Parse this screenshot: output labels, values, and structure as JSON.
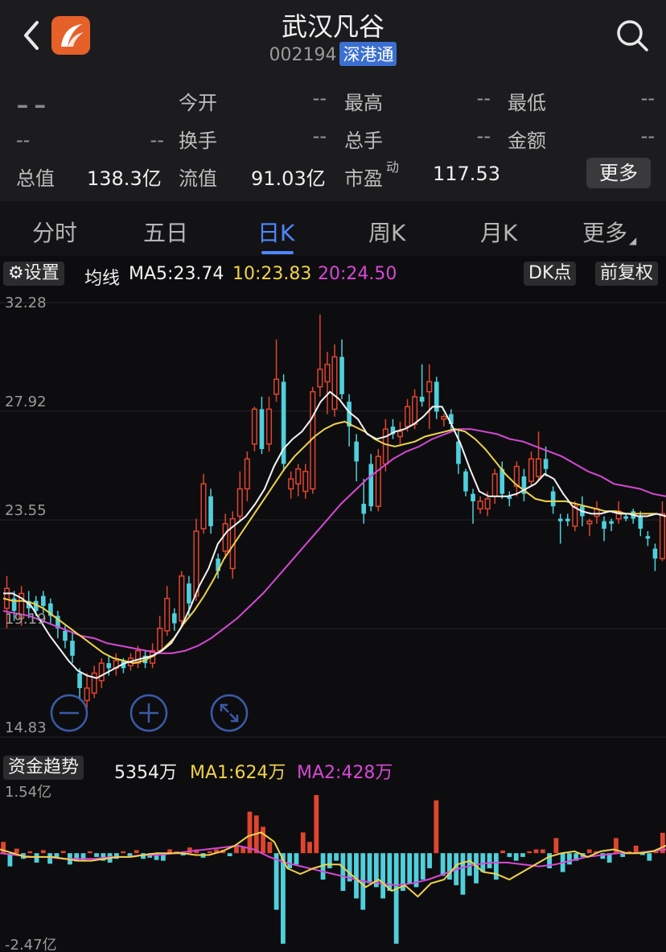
{
  "header": {
    "title": "武汉凡谷",
    "code": "002194",
    "badge": "深港通"
  },
  "quote": {
    "price": "--",
    "change": "--",
    "change_pct": "--",
    "rows": [
      [
        {
          "label": "今开",
          "value": "--"
        },
        {
          "label": "最高",
          "value": "--"
        },
        {
          "label": "最低",
          "value": "--"
        }
      ],
      [
        {
          "label": "换手",
          "value": "--"
        },
        {
          "label": "总手",
          "value": "--"
        },
        {
          "label": "金额",
          "value": "--"
        }
      ]
    ],
    "total_value_label": "总值",
    "total_value": "138.3亿",
    "float_value_label": "流值",
    "float_value": "91.03亿",
    "pe_label": "市盈",
    "pe_sup": "动",
    "pe_value": "117.53",
    "more_label": "更多"
  },
  "tabs": [
    "分时",
    "五日",
    "日K",
    "周K",
    "月K",
    "更多"
  ],
  "active_tab": "日K",
  "ma_row": {
    "settings_label": "设置",
    "ma_title": "均线",
    "ma5": "MA5:23.74",
    "ma10": "10:23.83",
    "ma20": "20:24.50",
    "dk_label": "DK点",
    "adjust_label": "前复权",
    "colors": {
      "ma5": "#f2f2f2",
      "ma10": "#f0d24a",
      "ma20": "#d648d6",
      "up": "#e0452f",
      "down": "#4fd0dc"
    }
  },
  "fund_row": {
    "title": "资金趋势",
    "value": "5354万",
    "ma1": "MA1:624万",
    "ma2": "MA2:428万"
  },
  "chart_data": [
    {
      "type": "candlestick",
      "y_ticks": [
        "32.28",
        "27.92",
        "23.55",
        "19.19",
        "14.83"
      ],
      "ylim": [
        14.83,
        32.28
      ],
      "candles": [
        [
          20.0,
          20.8,
          19.2,
          21.3
        ],
        [
          20.4,
          19.9,
          19.5,
          20.7
        ],
        [
          19.6,
          20.6,
          19.3,
          20.9
        ],
        [
          20.3,
          20.0,
          19.6,
          20.7
        ],
        [
          20.3,
          19.9,
          19.7,
          20.5
        ],
        [
          20.5,
          20.1,
          19.8,
          20.7
        ],
        [
          20.2,
          19.7,
          19.4,
          20.4
        ],
        [
          19.7,
          19.2,
          18.8,
          19.9
        ],
        [
          19.1,
          18.7,
          18.4,
          19.3
        ],
        [
          18.7,
          18.1,
          17.8,
          19.0
        ],
        [
          17.4,
          16.8,
          16.4,
          17.6
        ],
        [
          16.3,
          16.8,
          16.0,
          17.4
        ],
        [
          16.6,
          17.4,
          16.4,
          17.7
        ],
        [
          17.1,
          17.8,
          16.8,
          18.0
        ],
        [
          17.8,
          17.6,
          17.3,
          18.1
        ],
        [
          17.6,
          17.9,
          17.3,
          18.2
        ],
        [
          17.9,
          17.6,
          17.4,
          18.0
        ],
        [
          17.7,
          18.0,
          17.5,
          18.2
        ],
        [
          17.8,
          18.3,
          17.6,
          18.5
        ],
        [
          18.1,
          17.8,
          17.6,
          18.3
        ],
        [
          17.8,
          18.3,
          17.6,
          18.6
        ],
        [
          18.3,
          19.2,
          18.2,
          19.7
        ],
        [
          19.1,
          20.4,
          18.9,
          20.9
        ],
        [
          19.8,
          19.4,
          19.1,
          20.0
        ],
        [
          19.5,
          21.3,
          19.3,
          21.5
        ],
        [
          21.0,
          20.2,
          19.7,
          21.3
        ],
        [
          20.5,
          23.1,
          20.3,
          23.6
        ],
        [
          23.2,
          25.0,
          23.0,
          25.4
        ],
        [
          24.5,
          23.3,
          23.0,
          24.8
        ],
        [
          22.0,
          21.5,
          21.2,
          22.2
        ],
        [
          22.3,
          23.4,
          22.0,
          23.8
        ],
        [
          21.6,
          23.6,
          21.2,
          23.9
        ],
        [
          23.7,
          24.8,
          23.5,
          25.5
        ],
        [
          24.8,
          26.0,
          24.3,
          26.3
        ],
        [
          26.6,
          28.0,
          26.3,
          28.1
        ],
        [
          28.0,
          26.4,
          26.2,
          28.5
        ],
        [
          26.6,
          28.0,
          26.3,
          28.5
        ],
        [
          28.6,
          29.2,
          28.3,
          30.8
        ],
        [
          29.1,
          25.8,
          25.5,
          29.4
        ],
        [
          24.8,
          25.2,
          24.4,
          25.5
        ],
        [
          25.0,
          25.6,
          24.5,
          25.8
        ],
        [
          24.7,
          25.5,
          24.4,
          25.8
        ],
        [
          24.8,
          28.7,
          24.6,
          28.9
        ],
        [
          28.9,
          29.6,
          28.5,
          31.8
        ],
        [
          29.1,
          29.8,
          27.8,
          30.3
        ],
        [
          28.0,
          30.1,
          27.7,
          30.6
        ],
        [
          30.1,
          28.6,
          28.4,
          30.8
        ],
        [
          28.3,
          27.3,
          26.5,
          28.6
        ],
        [
          26.7,
          25.9,
          25.1,
          27.0
        ],
        [
          24.2,
          23.8,
          23.4,
          25.2
        ],
        [
          25.8,
          24.1,
          23.9,
          26.2
        ],
        [
          24.1,
          26.1,
          23.9,
          26.4
        ],
        [
          25.8,
          27.2,
          25.5,
          27.6
        ],
        [
          27.3,
          27.0,
          26.8,
          27.6
        ],
        [
          26.9,
          27.1,
          26.6,
          27.5
        ],
        [
          27.3,
          28.1,
          27.1,
          28.4
        ],
        [
          27.4,
          28.5,
          27.2,
          28.8
        ],
        [
          28.5,
          28.3,
          28.1,
          29.8
        ],
        [
          28.7,
          29.1,
          27.2,
          29.8
        ],
        [
          29.1,
          27.9,
          27.6,
          29.3
        ],
        [
          27.6,
          27.7,
          27.3,
          27.8
        ],
        [
          27.8,
          27.4,
          27.1,
          28.0
        ],
        [
          26.7,
          25.8,
          25.4,
          27.2
        ],
        [
          25.5,
          24.7,
          24.5,
          25.6
        ],
        [
          24.6,
          24.3,
          23.4,
          24.8
        ],
        [
          24.0,
          24.3,
          23.8,
          24.5
        ],
        [
          24.0,
          24.4,
          23.7,
          24.7
        ],
        [
          24.5,
          25.4,
          24.2,
          25.6
        ],
        [
          25.6,
          24.6,
          24.4,
          25.9
        ],
        [
          24.5,
          24.4,
          24.1,
          24.7
        ],
        [
          24.9,
          25.7,
          24.5,
          25.9
        ],
        [
          25.3,
          24.6,
          24.3,
          25.6
        ],
        [
          25.1,
          26.0,
          24.9,
          26.3
        ],
        [
          25.3,
          26.0,
          25.1,
          27.1
        ],
        [
          26.0,
          25.6,
          25.3,
          26.5
        ],
        [
          24.7,
          24.1,
          23.8,
          24.9
        ],
        [
          23.6,
          23.5,
          22.6,
          23.8
        ],
        [
          23.6,
          23.5,
          23.3,
          23.8
        ],
        [
          23.3,
          24.1,
          23.1,
          24.3
        ],
        [
          24.1,
          23.7,
          23.3,
          24.5
        ],
        [
          23.4,
          23.5,
          22.9,
          23.6
        ],
        [
          23.7,
          24.0,
          23.4,
          24.3
        ],
        [
          23.5,
          23.2,
          22.7,
          23.7
        ],
        [
          23.5,
          23.4,
          23.1,
          23.6
        ],
        [
          23.6,
          23.9,
          23.4,
          24.3
        ],
        [
          23.7,
          23.6,
          23.5,
          23.8
        ],
        [
          23.9,
          23.6,
          23.4,
          24.0
        ],
        [
          23.7,
          23.2,
          22.9,
          23.9
        ],
        [
          22.9,
          22.8,
          22.5,
          23.1
        ],
        [
          22.4,
          22.0,
          21.5,
          22.6
        ],
        [
          22.0,
          23.8,
          21.9,
          24.3
        ]
      ],
      "ma5": [
        20.6,
        20.6,
        20.4,
        20.1,
        19.5,
        18.9,
        18.4,
        17.9,
        17.5,
        17.3,
        17.2,
        17.4,
        17.6,
        17.8,
        17.9,
        18.0,
        18.1,
        18.3,
        18.6,
        19.2,
        20.0,
        20.9,
        21.6,
        22.6,
        23.1,
        23.4,
        23.7,
        24.2,
        24.8,
        25.7,
        26.4,
        26.8,
        27.1,
        27.6,
        28.3,
        28.7,
        28.4,
        27.9,
        27.6,
        27.0,
        26.8,
        26.9,
        27.1,
        27.2,
        27.4,
        27.7,
        28.1,
        28.1,
        27.4,
        26.6,
        25.6,
        24.7,
        24.5,
        24.5,
        24.5,
        24.6,
        24.8,
        25.0,
        25.4,
        25.2,
        24.6,
        24.1,
        23.9,
        23.8,
        23.8,
        23.9,
        23.8,
        23.8,
        23.7,
        23.7,
        23.8,
        23.7
      ],
      "ma10": [
        20.4,
        20.3,
        20.3,
        20.2,
        20.0,
        19.7,
        19.4,
        19.1,
        18.8,
        18.5,
        18.2,
        18.0,
        17.9,
        17.8,
        17.9,
        18.1,
        18.4,
        18.8,
        19.4,
        19.9,
        20.5,
        21.2,
        22.0,
        22.6,
        23.2,
        23.8,
        24.4,
        25.0,
        25.6,
        26.1,
        26.5,
        26.9,
        27.2,
        27.4,
        27.5,
        27.3,
        27.1,
        26.8,
        26.6,
        26.5,
        26.6,
        26.7,
        26.9,
        27.0,
        27.1,
        27.2,
        27.1,
        26.8,
        26.4,
        25.9,
        25.4,
        25.0,
        24.7,
        24.4,
        24.3,
        24.3,
        24.3,
        24.2,
        24.1,
        24.0,
        23.9,
        23.9,
        23.8,
        23.8,
        23.8,
        23.8,
        23.7
      ],
      "ma20": [
        19.9,
        19.8,
        19.7,
        19.5,
        19.3,
        19.1,
        18.9,
        18.8,
        18.6,
        18.5,
        18.4,
        18.3,
        18.2,
        18.2,
        18.3,
        18.5,
        18.8,
        19.2,
        19.6,
        20.1,
        20.6,
        21.2,
        21.8,
        22.4,
        23.0,
        23.6,
        24.2,
        24.7,
        25.2,
        25.6,
        26.0,
        26.3,
        26.5,
        26.8,
        27.0,
        27.2,
        27.2,
        27.1,
        27.0,
        26.8,
        26.7,
        26.5,
        26.3,
        26.1,
        25.8,
        25.5,
        25.3,
        25.0,
        24.9,
        24.8,
        24.6,
        24.5
      ]
    },
    {
      "type": "bar",
      "title": "资金趋势",
      "y_ticks": [
        "1.54亿",
        "-2.47亿"
      ],
      "ylim": [
        -2.47,
        1.54
      ],
      "values": [
        0.3,
        -0.35,
        0.12,
        -0.15,
        0.05,
        -0.25,
        0.08,
        -0.28,
        -0.12,
        0.06,
        -0.3,
        -0.22,
        -0.18,
        0.05,
        -0.1,
        -0.2,
        -0.25,
        -0.15,
        0.05,
        -0.1,
        0.08,
        -0.15,
        -0.12,
        -0.18,
        -0.2,
        0.1,
        0.05,
        -0.06,
        0.15,
        0.1,
        -0.12,
        0.05,
        0.1,
        0.09,
        -0.08,
        0.2,
        0.18,
        1.1,
        1.0,
        0.7,
        0.3,
        -1.5,
        -2.4,
        -0.4,
        -0.3,
        0.55,
        0.3,
        1.54,
        -0.7,
        -0.4,
        -0.2,
        -1.0,
        -0.75,
        -1.2,
        -1.5,
        -0.8,
        -0.9,
        -1.2,
        -1.0,
        -2.4,
        -1.0,
        -0.8,
        -0.9,
        -0.7,
        -0.4,
        1.4,
        -0.6,
        -0.7,
        -0.85,
        -1.1,
        -0.6,
        -0.8,
        -0.5,
        -0.4,
        -0.7,
        0.07,
        -0.1,
        -0.2,
        -0.1,
        0.05,
        0.1,
        0.1,
        -0.4,
        0.4,
        -0.5,
        -0.3,
        -0.2,
        -0.1,
        0.1,
        0.05,
        -0.15,
        -0.25,
        0.4,
        -0.1,
        0.05,
        0.2,
        -0.05,
        -0.2,
        0.05,
        0.54
      ],
      "ma1": [
        0.1,
        0.0,
        -0.1,
        -0.1,
        -0.1,
        -0.15,
        -0.2,
        -0.2,
        -0.15,
        -0.1,
        -0.1,
        -0.05,
        0.0,
        0.0,
        0.0,
        -0.05,
        -0.05,
        0.05,
        0.2,
        0.45,
        0.55,
        0.3,
        -0.4,
        -0.55,
        -0.4,
        -0.3,
        -0.3,
        -0.6,
        -0.9,
        -0.7,
        -1.0,
        -0.85,
        -1.15,
        -0.8,
        -0.7,
        -0.3,
        -0.2,
        -0.5,
        -0.55,
        -0.7,
        -0.5,
        -0.3,
        -0.1,
        0.0,
        0.05,
        -0.1,
        0.05,
        0.1,
        0.0,
        0.0,
        0.05,
        0.2
      ],
      "ma2": [
        0.0,
        -0.05,
        -0.1,
        -0.1,
        -0.15,
        -0.15,
        -0.15,
        -0.1,
        -0.1,
        -0.05,
        -0.05,
        0.0,
        0.05,
        0.1,
        0.15,
        0.2,
        0.1,
        -0.1,
        -0.25,
        -0.35,
        -0.45,
        -0.55,
        -0.65,
        -0.75,
        -0.8,
        -0.85,
        -0.8,
        -0.7,
        -0.55,
        -0.4,
        -0.3,
        -0.25,
        -0.25,
        -0.3,
        -0.35,
        -0.3,
        -0.2,
        -0.1,
        -0.05,
        0.0,
        0.0,
        0.05,
        0.1
      ]
    }
  ]
}
